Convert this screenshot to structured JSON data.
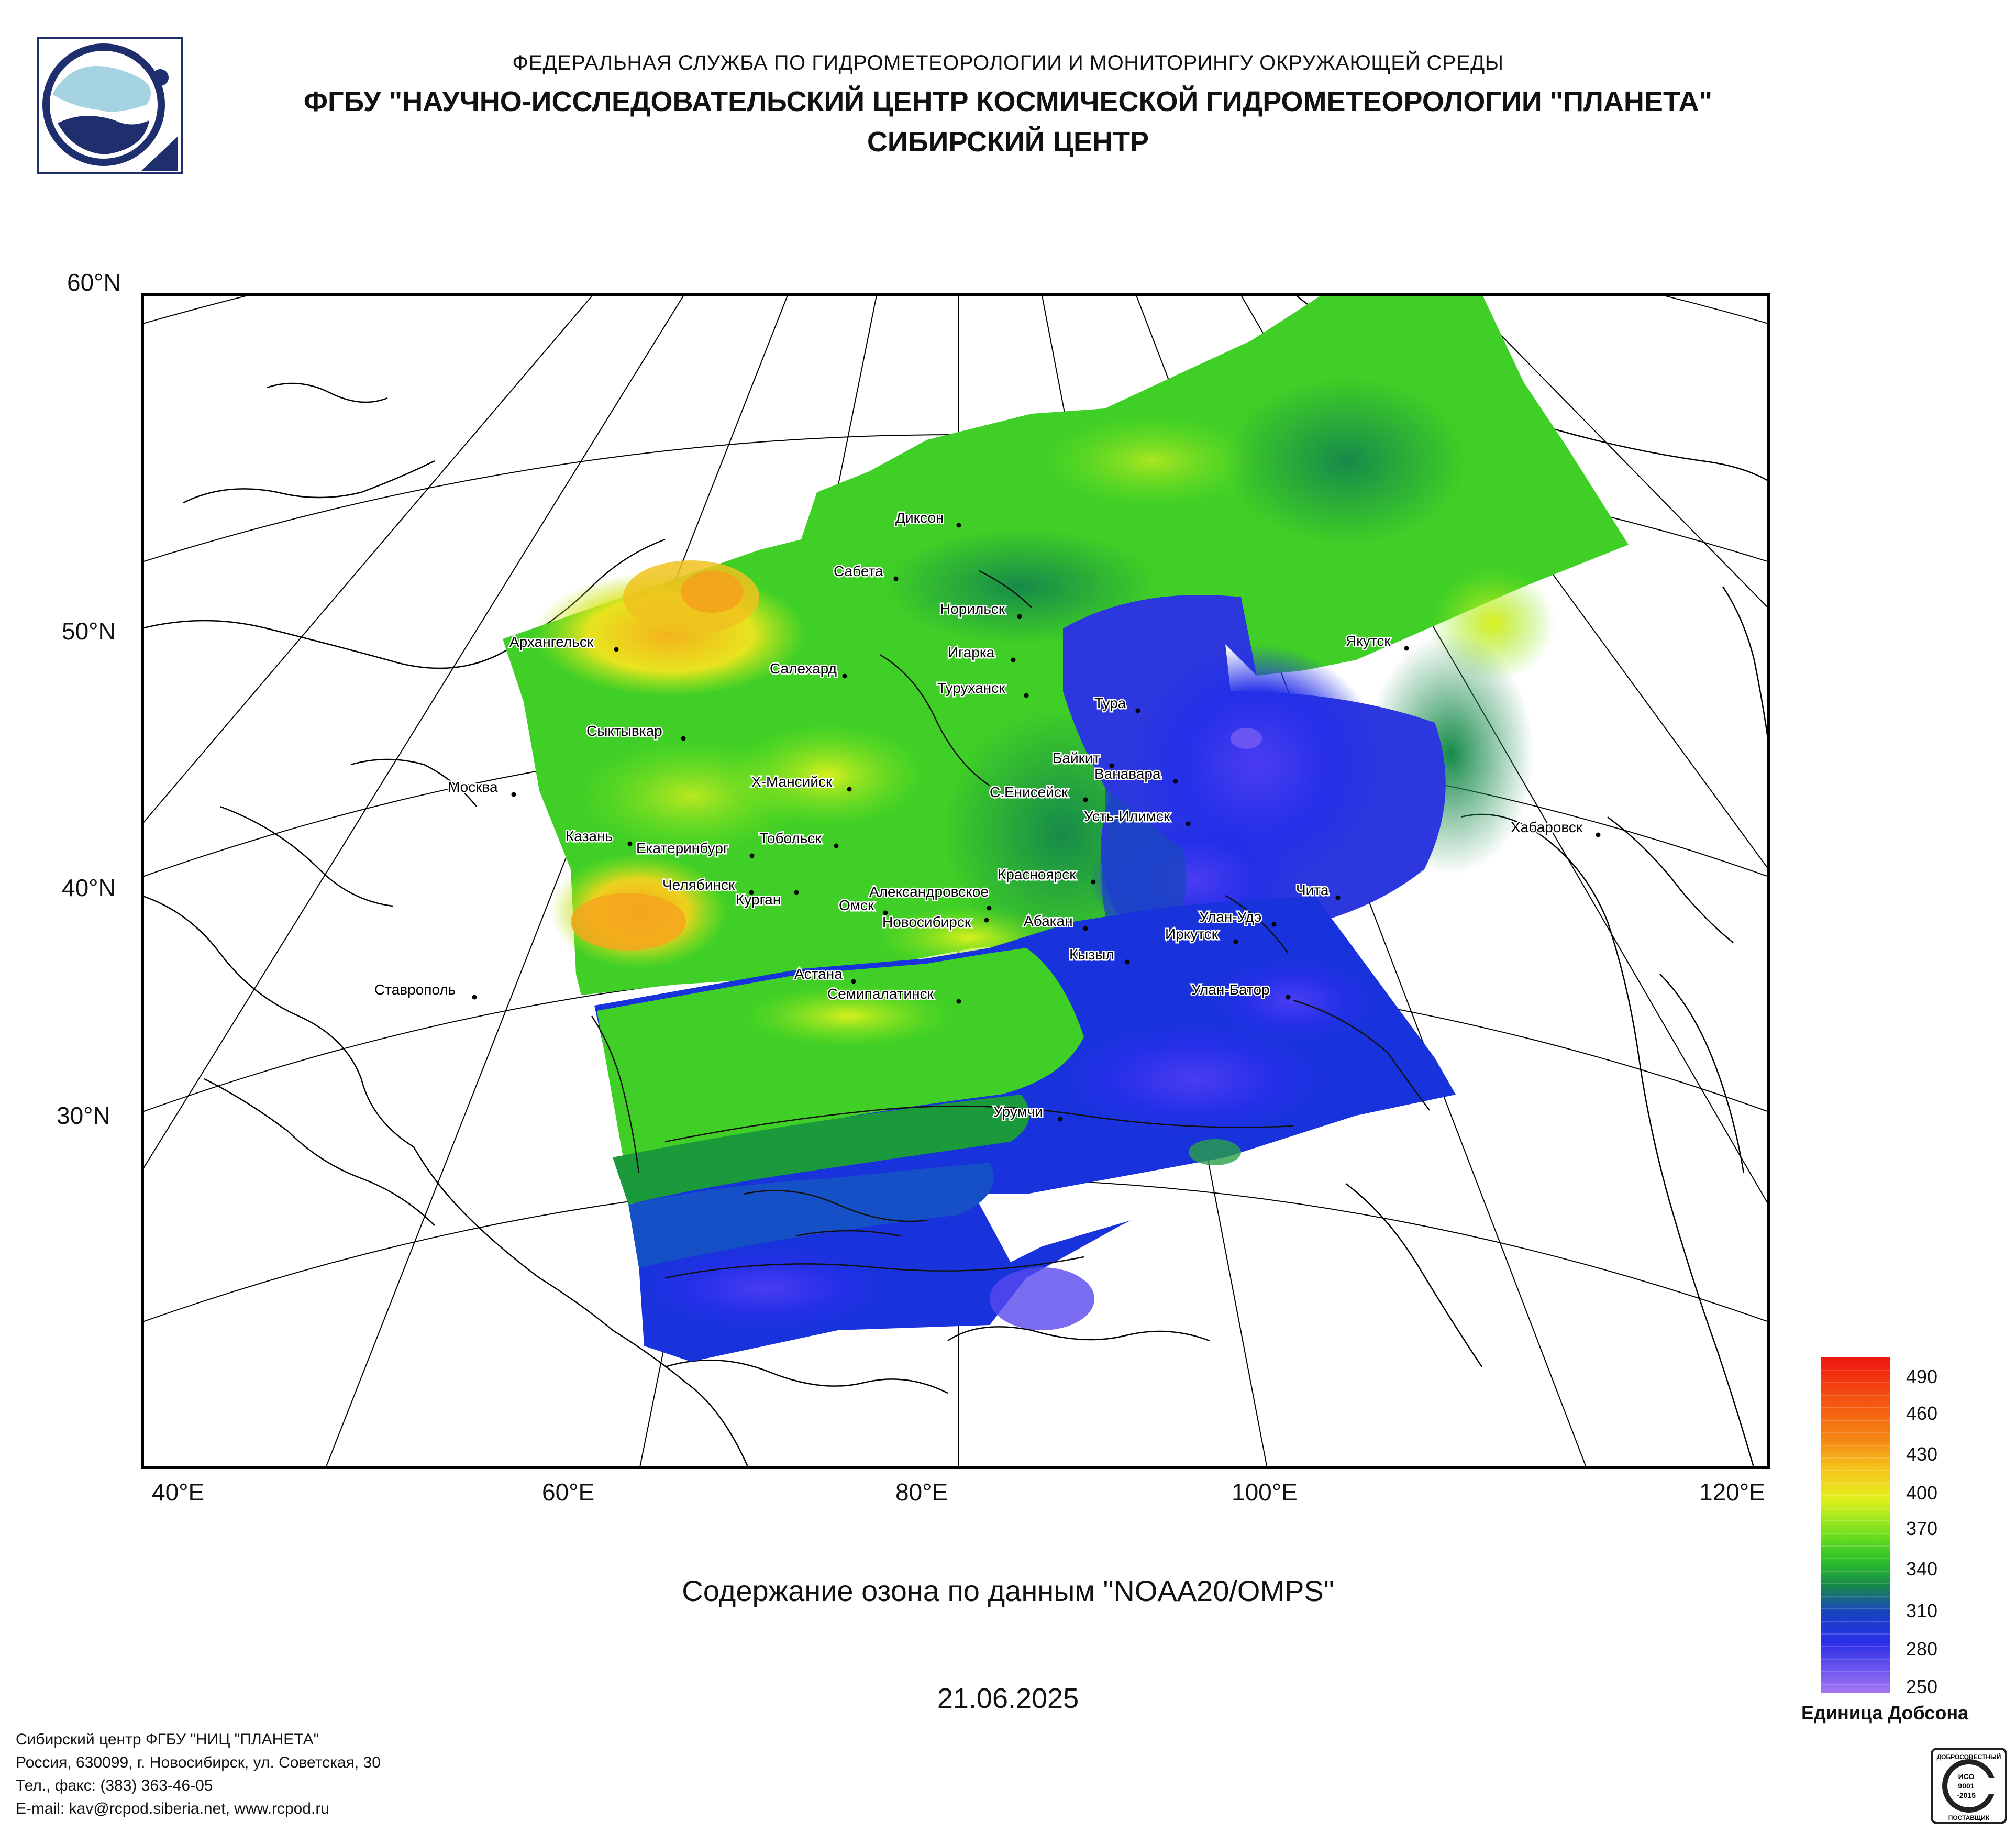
{
  "header": {
    "line1": "ФЕДЕРАЛЬНАЯ СЛУЖБА ПО ГИДРОМЕТЕОРОЛОГИИ И МОНИТОРИНГУ ОКРУЖАЮЩЕЙ СРЕДЫ",
    "line2": "ФГБУ \"НАУЧНО-ИССЛЕДОВАТЕЛЬСКИЙ ЦЕНТР КОСМИЧЕСКОЙ ГИДРОМЕТЕОРОЛОГИИ \"ПЛАНЕТА\"",
    "line3": "СИБИРСКИЙ ЦЕНТР"
  },
  "map": {
    "lat_labels": [
      "60°N",
      "50°N",
      "40°N",
      "30°N"
    ],
    "lon_labels": [
      "40°E",
      "60°E",
      "80°E",
      "100°E",
      "120°E"
    ],
    "cities": [
      "Диксон",
      "Сабета",
      "Норильск",
      "Игарка",
      "Архангельск",
      "Салехард",
      "Туруханск",
      "Тура",
      "Якутск",
      "Сыктывкар",
      "Байкит",
      "Ванавара",
      "Х-Мансийск",
      "Москва",
      "С.Енисейск",
      "Усть-Илимск",
      "Хабаровск",
      "Казань",
      "Тобольск",
      "Екатеринбург",
      "Красноярск",
      "Чита",
      "Челябинск",
      "Курган",
      "Александровское",
      "Омск",
      "Новосибирск",
      "Абакан",
      "Улан-Удэ",
      "Иркутск",
      "Кызыл",
      "Ставрополь",
      "Астана",
      "Семипалатинск",
      "Улан-Батор",
      "Урумчи"
    ]
  },
  "title": "Содержание озона по данным \"NOAA20/OMPS\"",
  "date": "21.06.2025",
  "legend": {
    "values": [
      "490",
      "460",
      "430",
      "400",
      "370",
      "340",
      "310",
      "280",
      "250"
    ],
    "unit": "Единица Добсона",
    "colors": {
      "250": "#9b6bf0",
      "280": "#4a3ef0",
      "310": "#1c3cd8",
      "340": "#1a9a3a",
      "370": "#46e01e",
      "400": "#e8f01e",
      "430": "#f5b71a",
      "460": "#f36b12",
      "490": "#f0160f"
    }
  },
  "footer": {
    "line1": "Сибирский центр ФГБУ \"НИЦ \"ПЛАНЕТА\"",
    "line2": "Россия, 630099, г. Новосибирск, ул. Советская, 30",
    "line3": "Тел., факс: (383) 363-46-05",
    "line4": "E-mail: kav@rcpod.siberia.net, www.rcpod.ru"
  },
  "certificate": [
    "ДОБРОСОВЕСТНЫЙ",
    "ИСО",
    "9001",
    "-2015",
    "ПОСТАВЩИК"
  ]
}
